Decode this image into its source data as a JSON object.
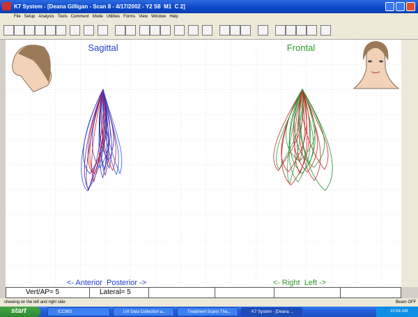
{
  "title_bar": {
    "title": "K7 System - [Deana Gilligan - Scan 8 - 4/17/2002 - Y2 S8  M1  C 2]"
  },
  "menu": [
    "File",
    "Setup",
    "Analysis",
    "Tools",
    "Comment",
    "Mode",
    "Utilities",
    "Forms",
    "View",
    "Window",
    "Help"
  ],
  "canvas": {
    "sagittal": "Sagittal",
    "frontal": "Frontal",
    "sagittal_axis": "<- Anterior  Posterior ->",
    "frontal_axis": "<- Right  Left ->"
  },
  "fields": [
    "Vert/AP= 5",
    "Lateral= 5"
  ],
  "status_bar": {
    "message": "chewing on the left and right side",
    "beam": "Beam OFF"
  },
  "taskbar": {
    "start": "start",
    "items": [
      "ICCMO",
      "LVI Data Collection a...",
      "Treatment Scans Tha...",
      "K7 System - [Deana ..."
    ],
    "clock": "10:54 AM"
  }
}
